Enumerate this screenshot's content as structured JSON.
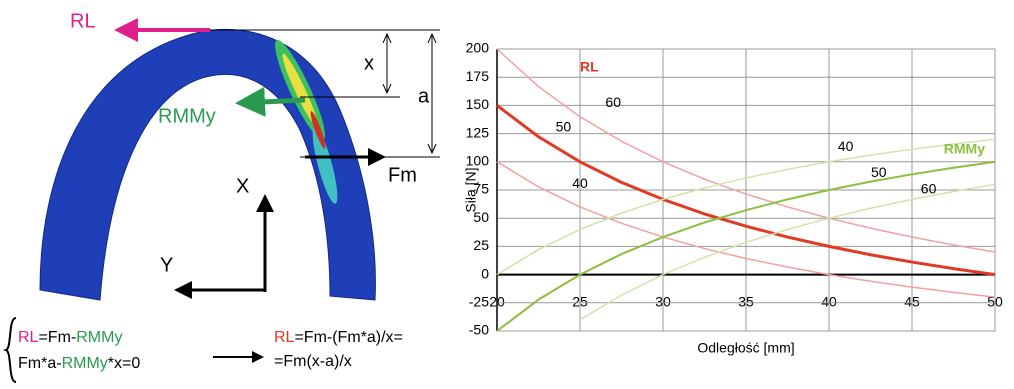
{
  "diagram": {
    "force_rl": "RL",
    "force_rmmy": "RMMy",
    "force_fm": "Fm",
    "dim_x": "x",
    "dim_a": "a",
    "axis_x": "X",
    "axis_y": "Y",
    "equation_1": [
      "RL",
      "=Fm-",
      "RMMy"
    ],
    "equation_2": [
      "Fm*a-",
      "RMMy",
      "*x=0"
    ],
    "result_1": [
      "RL",
      "=Fm-(Fm*a)/x="
    ],
    "result_2": "=Fm(x-a)/x"
  },
  "chart_data": {
    "type": "line",
    "xlabel": "Odległość [mm]",
    "ylabel": "Siła [N]",
    "annotations": [
      {
        "text": "RL",
        "color": "#e03a24"
      },
      {
        "text": "RMMy",
        "color": "#8cbf3f"
      }
    ],
    "x": [
      20,
      22.5,
      25,
      27.5,
      30,
      32.5,
      35,
      37.5,
      40,
      42.5,
      45,
      47.5,
      50
    ],
    "series": [
      {
        "name": "60",
        "color": "#f2a0a0",
        "width": 1.5,
        "values": [
          200,
          166.7,
          140,
          118.2,
          100,
          84.6,
          71.4,
          60,
          50,
          41.2,
          33.3,
          26.3,
          20
        ]
      },
      {
        "name": "50",
        "color": "#e03a24",
        "width": 3,
        "values": [
          150,
          122.2,
          100,
          81.8,
          66.7,
          53.8,
          42.9,
          33.3,
          25,
          17.6,
          11.1,
          5.3,
          0
        ]
      },
      {
        "name": "40",
        "color": "#f2a0a0",
        "width": 1.5,
        "values": [
          100,
          77.8,
          60,
          45.5,
          33.3,
          23.1,
          14.3,
          6.7,
          0,
          -5.9,
          -11.1,
          -15.8,
          -20
        ]
      },
      {
        "name": "40",
        "color": "#cde6a8",
        "width": 1.5,
        "values": [
          0,
          22.2,
          40,
          54.5,
          66.7,
          76.9,
          85.7,
          93.3,
          100,
          105.9,
          111.1,
          115.8,
          120
        ]
      },
      {
        "name": "50",
        "color": "#8cbf3f",
        "width": 2,
        "values": [
          -50,
          -22.2,
          0,
          18.2,
          33.3,
          46.2,
          57.1,
          66.7,
          75,
          82.4,
          88.9,
          94.7,
          100
        ]
      },
      {
        "name": "60",
        "color": "#cde6a8",
        "width": 1.5,
        "values": [
          null,
          null,
          -40,
          -18.2,
          0,
          15.4,
          28.6,
          40,
          50,
          58.8,
          66.7,
          73.7,
          80
        ]
      }
    ],
    "xlim": [
      20,
      50
    ],
    "xticks": [
      20,
      25,
      30,
      35,
      40,
      45,
      50
    ],
    "ylim": [
      -50,
      200
    ],
    "yticks": [
      -50,
      -25,
      0,
      25,
      50,
      75,
      100,
      125,
      150,
      175,
      200
    ],
    "grid": true
  }
}
